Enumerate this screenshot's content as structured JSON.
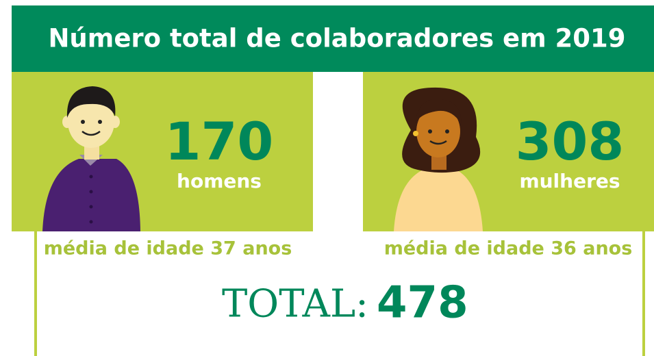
{
  "title": "Número total de colaboradores em 2019",
  "men": {
    "count": 170,
    "label": "homens",
    "age_note": "média de idade 37 anos"
  },
  "women": {
    "count": 308,
    "label": "mulheres",
    "age_note": "média de idade 36 anos"
  },
  "total": {
    "label": "TOTAL:",
    "value": 478
  }
}
